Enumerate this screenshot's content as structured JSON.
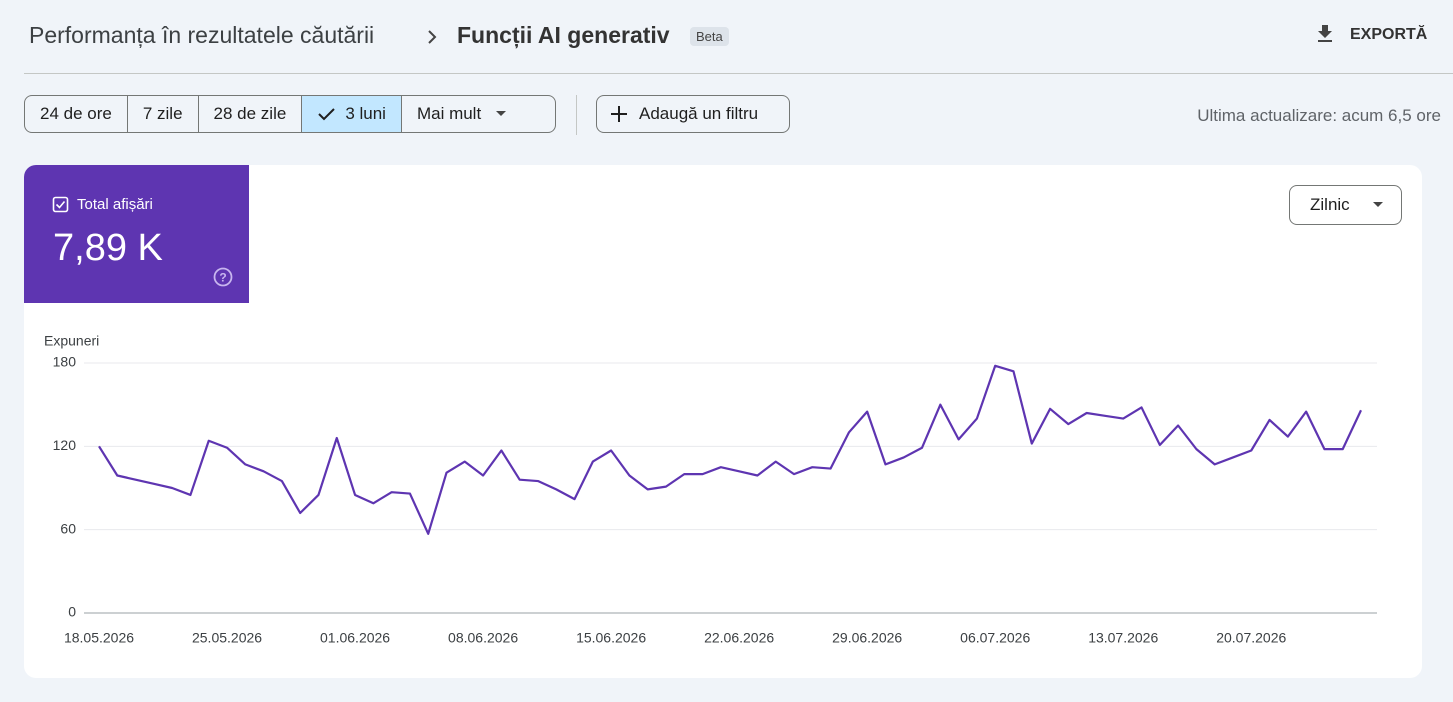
{
  "header": {
    "breadcrumb_parent": "Performanța în rezultatele căutării",
    "title": "Funcții AI generativ",
    "badge": "Beta",
    "export": "EXPORTĂ"
  },
  "toolbar": {
    "ranges": [
      "24 de ore",
      "7 zile",
      "28 de zile",
      "3 luni",
      "Mai mult"
    ],
    "filter": "Adaugă un filtru",
    "last_update": "Ultima actualizare: acum 6,5 ore"
  },
  "metric": {
    "label": "Total afișări",
    "value": "7,89 K"
  },
  "granularity": "Zilnic",
  "chart_data": {
    "type": "line",
    "y_label": "Expuneri",
    "color": "#5e35b1",
    "categories": [
      "18.05.2026",
      null,
      null,
      null,
      null,
      null,
      null,
      "25.05.2026",
      null,
      null,
      null,
      null,
      null,
      null,
      "01.06.2026",
      null,
      null,
      null,
      null,
      null,
      null,
      "08.06.2026",
      null,
      null,
      null,
      null,
      null,
      null,
      "15.06.2026",
      null,
      null,
      null,
      null,
      null,
      null,
      "22.06.2026",
      null,
      null,
      null,
      null,
      null,
      null,
      "29.06.2026",
      null,
      null,
      null,
      null,
      null,
      null,
      "06.07.2026",
      null,
      null,
      null,
      null,
      null,
      null,
      "13.07.2026",
      null,
      null,
      null,
      null,
      null,
      null,
      "20.07.2026",
      null,
      null,
      null,
      null,
      null,
      null
    ],
    "values": [
      120,
      99,
      96,
      93,
      90,
      85,
      124,
      119,
      107,
      102,
      95,
      72,
      85,
      126,
      85,
      79,
      87,
      86,
      57,
      101,
      109,
      99,
      117,
      96,
      95,
      89,
      82,
      109,
      117,
      99,
      89,
      91,
      100,
      100,
      105,
      102,
      99,
      109,
      100,
      105,
      104,
      130,
      145,
      107,
      112,
      119,
      150,
      125,
      140,
      178,
      174,
      122,
      147,
      136,
      144,
      142,
      140,
      148,
      121,
      135,
      118,
      107,
      112,
      117,
      139,
      127,
      145,
      118,
      118,
      146
    ],
    "ylim": [
      0,
      180
    ],
    "yticks": [
      0,
      60,
      120,
      180
    ],
    "grid": true
  }
}
